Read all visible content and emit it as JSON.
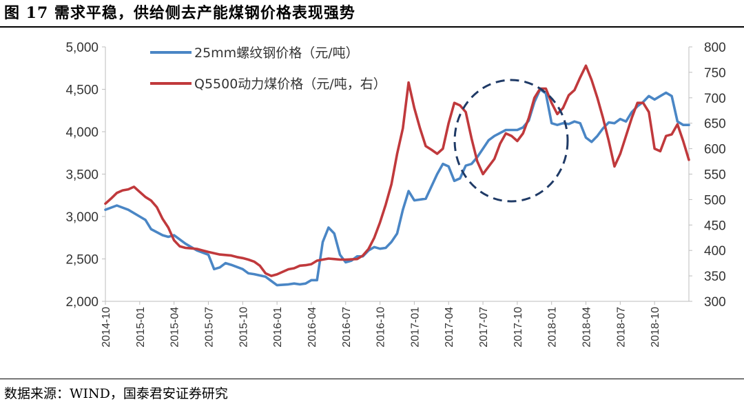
{
  "figure": {
    "title": "图 17 需求平稳，供给侧去产能煤钢价格表现强势",
    "source": "数据来源：WIND，国泰君安证券研究"
  },
  "chart_data": {
    "type": "line",
    "title": "图 17 需求平稳，供给侧去产能煤钢价格表现强势",
    "x_tick_labels": [
      "2014-10",
      "2015-01",
      "2015-04",
      "2015-07",
      "2015-10",
      "2016-01",
      "2016-04",
      "2016-07",
      "2016-10",
      "2017-01",
      "2017-04",
      "2017-07",
      "2017-10",
      "2018-01",
      "2018-04",
      "2018-07",
      "2018-10"
    ],
    "x_range_months": [
      0,
      51
    ],
    "left_axis": {
      "ylim": [
        2000,
        5000
      ],
      "ticks": [
        2000,
        2500,
        3000,
        3500,
        4000,
        4500,
        5000
      ],
      "tick_labels": [
        "2,000",
        "2,500",
        "3,000",
        "3,500",
        "4,000",
        "4,500",
        "5,000"
      ]
    },
    "right_axis": {
      "ylim": [
        300,
        800
      ],
      "ticks": [
        300,
        350,
        400,
        450,
        500,
        550,
        600,
        650,
        700,
        750,
        800
      ],
      "tick_labels": [
        "300",
        "350",
        "400",
        "450",
        "500",
        "550",
        "600",
        "650",
        "700",
        "750",
        "800"
      ]
    },
    "series": [
      {
        "name": "25mm螺纹钢价格（元/吨）",
        "axis": "left",
        "color": "#4a86c5",
        "points": [
          [
            0,
            3080
          ],
          [
            1,
            3130
          ],
          [
            2,
            3080
          ],
          [
            3,
            3000
          ],
          [
            3.5,
            2960
          ],
          [
            4,
            2850
          ],
          [
            5,
            2780
          ],
          [
            5.5,
            2760
          ],
          [
            6,
            2780
          ],
          [
            7,
            2680
          ],
          [
            8,
            2600
          ],
          [
            9,
            2550
          ],
          [
            9.5,
            2380
          ],
          [
            10,
            2400
          ],
          [
            10.5,
            2450
          ],
          [
            11,
            2430
          ],
          [
            12,
            2380
          ],
          [
            12.5,
            2330
          ],
          [
            13,
            2320
          ],
          [
            14,
            2290
          ],
          [
            14.5,
            2240
          ],
          [
            15,
            2190
          ],
          [
            16,
            2200
          ],
          [
            16.5,
            2210
          ],
          [
            17,
            2200
          ],
          [
            17.5,
            2210
          ],
          [
            18,
            2250
          ],
          [
            18.5,
            2250
          ],
          [
            19,
            2700
          ],
          [
            19.5,
            2870
          ],
          [
            20,
            2800
          ],
          [
            20.5,
            2550
          ],
          [
            21,
            2460
          ],
          [
            21.5,
            2480
          ],
          [
            22,
            2530
          ],
          [
            22.5,
            2530
          ],
          [
            23,
            2600
          ],
          [
            23.5,
            2640
          ],
          [
            24,
            2620
          ],
          [
            24.5,
            2630
          ],
          [
            25,
            2700
          ],
          [
            25.5,
            2800
          ],
          [
            26,
            3080
          ],
          [
            26.5,
            3300
          ],
          [
            27,
            3190
          ],
          [
            28,
            3210
          ],
          [
            29,
            3500
          ],
          [
            29.5,
            3620
          ],
          [
            30,
            3590
          ],
          [
            30.5,
            3420
          ],
          [
            31,
            3450
          ],
          [
            31.5,
            3600
          ],
          [
            32,
            3620
          ],
          [
            32.5,
            3700
          ],
          [
            33,
            3800
          ],
          [
            33.5,
            3900
          ],
          [
            34,
            3950
          ],
          [
            35,
            4020
          ],
          [
            36,
            4020
          ],
          [
            36.5,
            4050
          ],
          [
            37,
            4130
          ],
          [
            37.5,
            4350
          ],
          [
            38,
            4500
          ],
          [
            38.5,
            4450
          ],
          [
            39,
            4100
          ],
          [
            39.5,
            4080
          ],
          [
            40,
            4100
          ],
          [
            40.5,
            4090
          ],
          [
            41,
            4120
          ],
          [
            41.5,
            4100
          ],
          [
            42,
            3930
          ],
          [
            42.5,
            3880
          ],
          [
            43,
            3950
          ],
          [
            43.5,
            4040
          ],
          [
            44,
            4110
          ],
          [
            44.5,
            4100
          ],
          [
            45,
            4150
          ],
          [
            45.5,
            4120
          ],
          [
            46,
            4230
          ],
          [
            46.5,
            4300
          ],
          [
            47,
            4350
          ],
          [
            47.5,
            4420
          ],
          [
            48,
            4380
          ],
          [
            48.5,
            4420
          ],
          [
            49,
            4460
          ],
          [
            49.5,
            4420
          ],
          [
            50,
            4120
          ],
          [
            50.5,
            4080
          ],
          [
            51,
            4080
          ]
        ]
      },
      {
        "name": "Q5500动力煤价格（元/吨，右）",
        "axis": "right",
        "color": "#c0393c",
        "points": [
          [
            0,
            492
          ],
          [
            0.5,
            502
          ],
          [
            1,
            513
          ],
          [
            1.5,
            518
          ],
          [
            2,
            520
          ],
          [
            2.5,
            525
          ],
          [
            3,
            515
          ],
          [
            3.5,
            505
          ],
          [
            4,
            498
          ],
          [
            4.5,
            485
          ],
          [
            5,
            462
          ],
          [
            5.5,
            445
          ],
          [
            6,
            420
          ],
          [
            6.5,
            408
          ],
          [
            7,
            405
          ],
          [
            7.5,
            404
          ],
          [
            8,
            403
          ],
          [
            8.5,
            400
          ],
          [
            9,
            397
          ],
          [
            10,
            392
          ],
          [
            11,
            390
          ],
          [
            11.5,
            387
          ],
          [
            12,
            385
          ],
          [
            12.5,
            382
          ],
          [
            13,
            378
          ],
          [
            13.5,
            370
          ],
          [
            14,
            355
          ],
          [
            14.5,
            350
          ],
          [
            15,
            353
          ],
          [
            16,
            363
          ],
          [
            16.5,
            365
          ],
          [
            17,
            370
          ],
          [
            17.5,
            371
          ],
          [
            18,
            373
          ],
          [
            18.5,
            380
          ],
          [
            19,
            382
          ],
          [
            19.5,
            384
          ],
          [
            20,
            383
          ],
          [
            20.5,
            382
          ],
          [
            21,
            382
          ],
          [
            22,
            383
          ],
          [
            22.5,
            390
          ],
          [
            23,
            403
          ],
          [
            23.5,
            425
          ],
          [
            24,
            455
          ],
          [
            24.5,
            490
          ],
          [
            25,
            530
          ],
          [
            25.5,
            590
          ],
          [
            26,
            640
          ],
          [
            26.5,
            730
          ],
          [
            27,
            680
          ],
          [
            27.5,
            640
          ],
          [
            28,
            605
          ],
          [
            28.5,
            598
          ],
          [
            29,
            590
          ],
          [
            29.5,
            600
          ],
          [
            30,
            650
          ],
          [
            30.5,
            690
          ],
          [
            31,
            685
          ],
          [
            31.5,
            672
          ],
          [
            32,
            620
          ],
          [
            32.5,
            575
          ],
          [
            33,
            550
          ],
          [
            33.5,
            565
          ],
          [
            34,
            580
          ],
          [
            34.5,
            610
          ],
          [
            35,
            630
          ],
          [
            35.5,
            625
          ],
          [
            36,
            615
          ],
          [
            36.5,
            630
          ],
          [
            37,
            660
          ],
          [
            37.5,
            700
          ],
          [
            38,
            718
          ],
          [
            38.5,
            718
          ],
          [
            39,
            690
          ],
          [
            39.5,
            668
          ],
          [
            40,
            680
          ],
          [
            40.5,
            705
          ],
          [
            41,
            715
          ],
          [
            41.5,
            740
          ],
          [
            42,
            763
          ],
          [
            42.5,
            735
          ],
          [
            43,
            700
          ],
          [
            43.5,
            660
          ],
          [
            44,
            615
          ],
          [
            44.5,
            565
          ],
          [
            45,
            590
          ],
          [
            45.5,
            625
          ],
          [
            46,
            660
          ],
          [
            46.5,
            690
          ],
          [
            47,
            690
          ],
          [
            47.5,
            672
          ],
          [
            48,
            600
          ],
          [
            48.5,
            595
          ],
          [
            49,
            625
          ],
          [
            49.5,
            628
          ],
          [
            50,
            648
          ],
          [
            50.5,
            615
          ],
          [
            51,
            578
          ]
        ]
      }
    ],
    "annotation": "dashed circle highlighting 2017-06 to 2018-01"
  }
}
